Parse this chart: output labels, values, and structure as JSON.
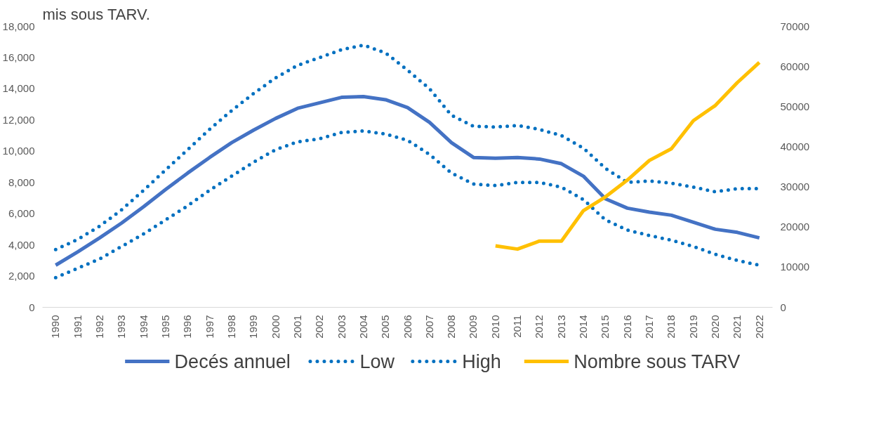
{
  "chart_data": {
    "type": "line",
    "title": "mis sous TARV.",
    "categories": [
      "1990",
      "1991",
      "1992",
      "1993",
      "1994",
      "1995",
      "1996",
      "1997",
      "1998",
      "1999",
      "2000",
      "2001",
      "2002",
      "2003",
      "2004",
      "2005",
      "2006",
      "2007",
      "2008",
      "2009",
      "2010",
      "2011",
      "2012",
      "2013",
      "2014",
      "2015",
      "2016",
      "2017",
      "2018",
      "2019",
      "2020",
      "2021",
      "2022"
    ],
    "series": [
      {
        "name": "Decés annuel",
        "color": "#4472c4",
        "line_style": "solid",
        "values": [
          2700,
          3550,
          4450,
          5400,
          6450,
          7550,
          8600,
          9600,
          10550,
          11350,
          12100,
          12750,
          13100,
          13450,
          13500,
          13300,
          12800,
          11850,
          10550,
          9600,
          9550,
          9600,
          9500,
          9200,
          8400,
          6950,
          6350,
          6100,
          5900,
          5450,
          5000,
          4800,
          4450
        ]
      },
      {
        "name": "Low",
        "color": "#0070c0",
        "line_style": "dotted",
        "values": [
          1900,
          2500,
          3100,
          3900,
          4700,
          5600,
          6500,
          7500,
          8400,
          9300,
          10100,
          10600,
          10800,
          11200,
          11300,
          11100,
          10700,
          9800,
          8600,
          7900,
          7800,
          8000,
          8000,
          7700,
          6900,
          5600,
          4950,
          4600,
          4300,
          3900,
          3400,
          3000,
          2700
        ]
      },
      {
        "name": "High",
        "color": "#0070c0",
        "line_style": "dotted",
        "values": [
          3700,
          4350,
          5200,
          6250,
          7500,
          8800,
          10100,
          11400,
          12600,
          13700,
          14700,
          15500,
          16000,
          16500,
          16800,
          16300,
          15200,
          14000,
          12300,
          11600,
          11550,
          11650,
          11400,
          11000,
          10200,
          8900,
          8000,
          8100,
          7950,
          7700,
          7400,
          7600,
          7600
        ]
      },
      {
        "name": "Nombre sous TARV",
        "color": "#ffc000",
        "line_style": "solid",
        "axis": "y2",
        "values": [
          null,
          null,
          null,
          null,
          null,
          null,
          null,
          null,
          null,
          null,
          null,
          null,
          null,
          null,
          null,
          null,
          null,
          null,
          null,
          null,
          15300,
          14500,
          16500,
          16500,
          24100,
          27500,
          31700,
          36600,
          39500,
          46500,
          50300,
          56000,
          61000
        ]
      }
    ],
    "ylim": [
      0,
      18000
    ],
    "yticks": [
      {
        "value": 0,
        "label": "0"
      },
      {
        "value": 2000,
        "label": "2,000"
      },
      {
        "value": 4000,
        "label": "4,000"
      },
      {
        "value": 6000,
        "label": "6,000"
      },
      {
        "value": 8000,
        "label": "8,000"
      },
      {
        "value": 10000,
        "label": "10,000"
      },
      {
        "value": 12000,
        "label": "12,000"
      },
      {
        "value": 14000,
        "label": "14,000"
      },
      {
        "value": 16000,
        "label": "16,000"
      },
      {
        "value": 18000,
        "label": "18,000"
      }
    ],
    "y2lim": [
      0,
      70000
    ],
    "y2ticks": [
      0,
      10000,
      20000,
      30000,
      40000,
      50000,
      60000,
      70000
    ],
    "grid": false,
    "legend": "bottom",
    "marker": "none"
  }
}
